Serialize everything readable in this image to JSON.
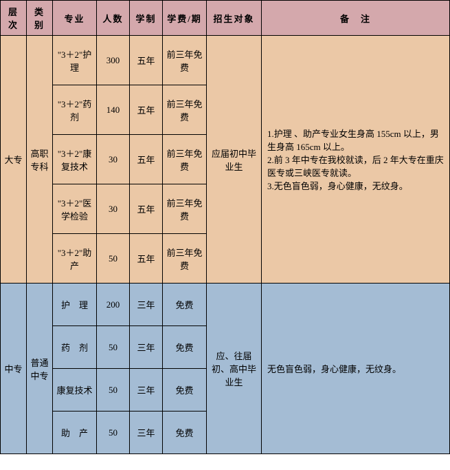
{
  "headers": {
    "level": "层次",
    "category": "类别",
    "major": "专业",
    "count": "人数",
    "duration": "学制",
    "fee": "学费/期",
    "target": "招生对象",
    "note": "备　注"
  },
  "sections": [
    {
      "level": "大专",
      "category": "高职专科",
      "target": "应届初中毕业生",
      "note": "1.护理 、助产专业女生身高 155cm 以上，男生身高 165cm 以上。\n2.前 3 年中专在我校就读，后 2 年大专在重庆医专或三峡医专就读。\n3.无色盲色弱，身心健康，无纹身。",
      "rows": [
        {
          "major": "\"3＋2\"护　理",
          "count": "300",
          "duration": "五年",
          "fee": "前三年免费"
        },
        {
          "major": "\"3＋2\"药　剂",
          "count": "140",
          "duration": "五年",
          "fee": "前三年免费"
        },
        {
          "major": "\"3＋2\"康复技术",
          "count": "30",
          "duration": "五年",
          "fee": "前三年免费"
        },
        {
          "major": "\"3＋2\"医学检验",
          "count": "30",
          "duration": "五年",
          "fee": "前三年免费"
        },
        {
          "major": "\"3＋2\"助　产",
          "count": "50",
          "duration": "五年",
          "fee": "前三年免费"
        }
      ]
    },
    {
      "level": "中专",
      "category": "普通中专",
      "target": "应、往届初、高中毕业生",
      "note": "无色盲色弱，身心健康，无纹身。",
      "rows": [
        {
          "major": "护　理",
          "count": "200",
          "duration": "三年",
          "fee": "免费"
        },
        {
          "major": "药　剂",
          "count": "50",
          "duration": "三年",
          "fee": "免费"
        },
        {
          "major": "康复技术",
          "count": "50",
          "duration": "三年",
          "fee": "免费"
        },
        {
          "major": "助　产",
          "count": "50",
          "duration": "三年",
          "fee": "免费"
        }
      ]
    }
  ],
  "colors": {
    "header_bg": "#d4a8ac",
    "section_a_bg": "#ebc8a6",
    "section_b_bg": "#a4bcd4",
    "border": "#000000"
  }
}
